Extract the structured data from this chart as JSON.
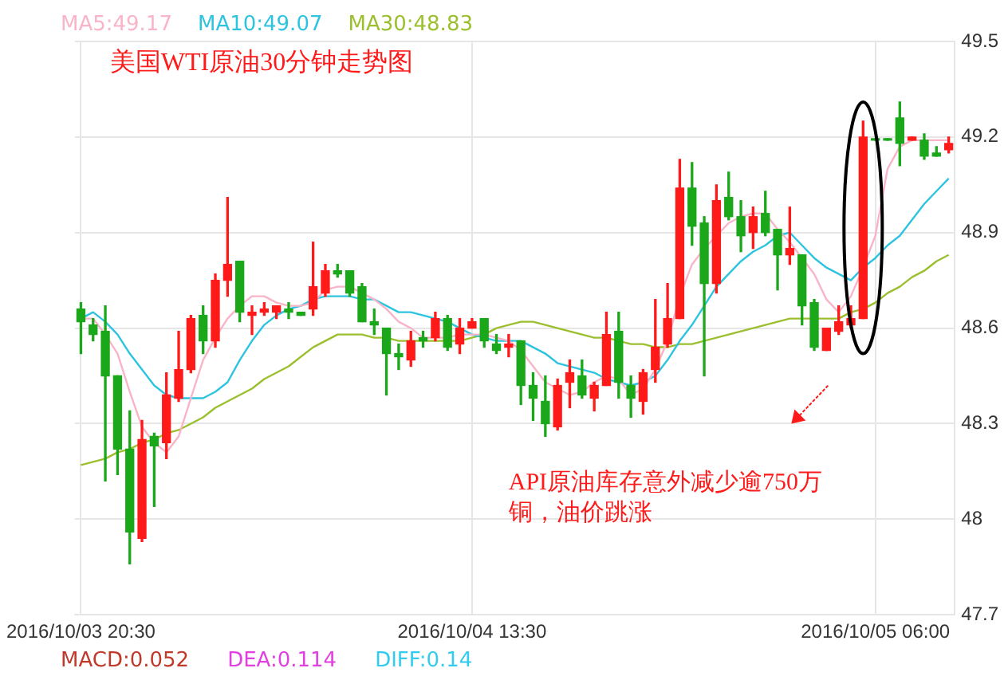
{
  "chart_data": {
    "type": "candlestick",
    "title": "美国WTI原油30分钟走势图",
    "categories": [
      "2016/10/03 20:30",
      null,
      null,
      null,
      null,
      null,
      null,
      null,
      null,
      null,
      null,
      null,
      null,
      null,
      null,
      null,
      null,
      null,
      null,
      null,
      null,
      null,
      null,
      null,
      null,
      null,
      null,
      null,
      null,
      null,
      null,
      null,
      "2016/10/04 13:30",
      null,
      null,
      null,
      null,
      null,
      null,
      null,
      null,
      null,
      null,
      null,
      null,
      null,
      null,
      null,
      null,
      null,
      null,
      null,
      null,
      null,
      null,
      null,
      null,
      null,
      null,
      null,
      null,
      null,
      null,
      null,
      null,
      "2016/10/05 06:00",
      null,
      null,
      null,
      null,
      null,
      null
    ],
    "ohlc": [
      [
        48.66,
        48.68,
        48.52,
        48.62
      ],
      [
        48.61,
        48.63,
        48.56,
        48.58
      ],
      [
        48.59,
        48.67,
        48.12,
        48.45
      ],
      [
        48.45,
        48.45,
        48.14,
        48.22
      ],
      [
        48.22,
        48.34,
        47.86,
        47.96
      ],
      [
        47.94,
        48.31,
        47.93,
        48.25
      ],
      [
        48.26,
        48.27,
        48.04,
        48.23
      ],
      [
        48.24,
        48.46,
        48.19,
        48.39
      ],
      [
        48.38,
        48.59,
        48.37,
        48.47
      ],
      [
        48.47,
        48.64,
        48.46,
        48.63
      ],
      [
        48.64,
        48.67,
        48.52,
        48.56
      ],
      [
        48.56,
        48.77,
        48.54,
        48.75
      ],
      [
        48.75,
        49.01,
        48.7,
        48.8
      ],
      [
        48.81,
        48.81,
        48.62,
        48.65
      ],
      [
        48.64,
        48.67,
        48.58,
        48.65
      ],
      [
        48.65,
        48.68,
        48.64,
        48.66
      ],
      [
        48.65,
        48.67,
        48.63,
        48.67
      ],
      [
        48.66,
        48.68,
        48.63,
        48.65
      ],
      [
        48.65,
        48.65,
        48.64,
        48.64
      ],
      [
        48.66,
        48.87,
        48.64,
        48.73
      ],
      [
        48.71,
        48.8,
        48.7,
        48.78
      ],
      [
        48.78,
        48.8,
        48.76,
        48.77
      ],
      [
        48.78,
        48.78,
        48.7,
        48.71
      ],
      [
        48.73,
        48.74,
        48.62,
        48.62
      ],
      [
        48.62,
        48.66,
        48.58,
        48.61
      ],
      [
        48.6,
        48.6,
        48.39,
        48.52
      ],
      [
        48.52,
        48.55,
        48.47,
        48.51
      ],
      [
        48.5,
        48.59,
        48.48,
        48.56
      ],
      [
        48.57,
        48.59,
        48.54,
        48.56
      ],
      [
        48.57,
        48.65,
        48.56,
        48.63
      ],
      [
        48.63,
        48.64,
        48.53,
        48.54
      ],
      [
        48.55,
        48.63,
        48.52,
        48.6
      ],
      [
        48.6,
        48.63,
        48.6,
        48.62
      ],
      [
        48.63,
        48.63,
        48.54,
        48.56
      ],
      [
        48.55,
        48.58,
        48.52,
        48.53
      ],
      [
        48.54,
        48.58,
        48.51,
        48.55
      ],
      [
        48.56,
        48.56,
        48.36,
        48.42
      ],
      [
        48.42,
        48.46,
        48.31,
        48.38
      ],
      [
        48.37,
        48.45,
        48.26,
        48.3
      ],
      [
        48.29,
        48.44,
        48.28,
        48.42
      ],
      [
        48.43,
        48.5,
        48.35,
        48.46
      ],
      [
        48.45,
        48.5,
        48.38,
        48.39
      ],
      [
        48.38,
        48.43,
        48.34,
        48.42
      ],
      [
        48.42,
        48.65,
        48.42,
        48.58
      ],
      [
        48.59,
        48.65,
        48.38,
        48.43
      ],
      [
        48.42,
        48.45,
        48.32,
        48.38
      ],
      [
        48.37,
        48.47,
        48.33,
        48.46
      ],
      [
        48.47,
        48.69,
        48.43,
        48.54
      ],
      [
        48.55,
        48.74,
        48.54,
        48.63
      ],
      [
        48.63,
        49.13,
        48.63,
        49.04
      ],
      [
        49.04,
        49.12,
        48.86,
        48.92
      ],
      [
        48.93,
        48.95,
        48.45,
        48.74
      ],
      [
        48.74,
        49.05,
        48.71,
        49.0
      ],
      [
        49.01,
        49.09,
        48.94,
        48.95
      ],
      [
        48.95,
        49.0,
        48.84,
        48.89
      ],
      [
        48.9,
        48.98,
        48.85,
        48.95
      ],
      [
        48.96,
        49.03,
        48.89,
        48.9
      ],
      [
        48.91,
        48.91,
        48.72,
        48.83
      ],
      [
        48.83,
        48.98,
        48.8,
        48.85
      ],
      [
        48.83,
        48.83,
        48.61,
        48.67
      ],
      [
        48.68,
        48.69,
        48.53,
        48.54
      ],
      [
        48.53,
        48.6,
        48.53,
        48.6
      ],
      [
        48.59,
        48.67,
        48.58,
        48.62
      ],
      [
        48.61,
        48.67,
        48.6,
        48.63
      ],
      [
        48.63,
        49.25,
        48.63,
        49.2
      ],
      [
        49.19,
        49.19,
        49.19,
        49.19
      ],
      [
        49.19,
        49.19,
        49.19,
        49.19
      ],
      [
        49.26,
        49.31,
        49.11,
        49.18
      ],
      [
        49.19,
        49.2,
        49.19,
        49.2
      ],
      [
        49.19,
        49.21,
        49.13,
        49.14
      ],
      [
        49.15,
        49.17,
        49.14,
        49.14
      ],
      [
        49.16,
        49.2,
        49.15,
        49.18
      ]
    ],
    "series": [
      {
        "name": "MA5:49.17",
        "type": "line",
        "color": "#f9b4c8",
        "values": [
          48.63,
          48.63,
          48.58,
          48.52,
          48.4,
          48.29,
          48.24,
          48.21,
          48.26,
          48.38,
          48.5,
          48.57,
          48.63,
          48.67,
          48.7,
          48.7,
          48.68,
          48.67,
          48.67,
          48.68,
          48.72,
          48.73,
          48.73,
          48.71,
          48.69,
          48.66,
          48.62,
          48.6,
          48.57,
          48.57,
          48.57,
          48.58,
          48.58,
          48.58,
          48.57,
          48.56,
          48.53,
          48.48,
          48.43,
          48.41,
          48.39,
          48.4,
          48.43,
          48.45,
          48.44,
          48.39,
          48.41,
          48.47,
          48.56,
          48.7,
          48.8,
          48.85,
          48.89,
          48.93,
          48.95,
          48.96,
          48.96,
          48.91,
          48.87,
          48.82,
          48.77,
          48.69,
          48.65,
          48.7,
          48.79,
          48.89,
          49.1,
          49.17,
          49.19,
          49.19,
          49.19,
          49.19
        ]
      },
      {
        "name": "MA10:49.07",
        "type": "line",
        "color": "#2ec4e0",
        "values": [
          48.63,
          48.65,
          48.62,
          48.58,
          48.52,
          48.47,
          48.42,
          48.39,
          48.38,
          48.38,
          48.38,
          48.4,
          48.43,
          48.5,
          48.56,
          48.61,
          48.64,
          48.66,
          48.67,
          48.69,
          48.7,
          48.7,
          48.7,
          48.69,
          48.69,
          48.67,
          48.65,
          48.65,
          48.64,
          48.63,
          48.62,
          48.6,
          48.58,
          48.57,
          48.56,
          48.56,
          48.56,
          48.54,
          48.52,
          48.49,
          48.48,
          48.47,
          48.46,
          48.44,
          48.43,
          48.42,
          48.43,
          48.45,
          48.5,
          48.56,
          48.61,
          48.67,
          48.73,
          48.77,
          48.81,
          48.84,
          48.86,
          48.89,
          48.9,
          48.86,
          48.82,
          48.79,
          48.77,
          48.75,
          48.79,
          48.82,
          48.86,
          48.89,
          48.94,
          48.99,
          49.03,
          49.07
        ]
      },
      {
        "name": "MA30:48.83",
        "type": "line",
        "color": "#9bbf2e",
        "values": [
          48.17,
          48.18,
          48.19,
          48.21,
          48.22,
          48.24,
          48.25,
          48.27,
          48.28,
          48.3,
          48.32,
          48.35,
          48.37,
          48.39,
          48.41,
          48.44,
          48.46,
          48.48,
          48.51,
          48.54,
          48.56,
          48.58,
          48.58,
          48.58,
          48.57,
          48.57,
          48.56,
          48.56,
          48.56,
          48.56,
          48.56,
          48.56,
          48.57,
          48.58,
          48.6,
          48.61,
          48.62,
          48.62,
          48.61,
          48.6,
          48.59,
          48.58,
          48.57,
          48.57,
          48.56,
          48.55,
          48.55,
          48.54,
          48.54,
          48.55,
          48.55,
          48.56,
          48.57,
          48.58,
          48.59,
          48.6,
          48.61,
          48.62,
          48.63,
          48.63,
          48.63,
          48.63,
          48.63,
          48.65,
          48.66,
          48.68,
          48.71,
          48.73,
          48.76,
          48.78,
          48.81,
          48.83
        ]
      }
    ],
    "ylim": [
      47.7,
      49.5
    ],
    "yticks": [
      47.7,
      48,
      48.3,
      48.6,
      48.9,
      49.2,
      49.5
    ],
    "grid": true,
    "legend": "top left",
    "marker": "none",
    "annotations": [
      "API原油库存意外减少逾750万铜，油价跳涨",
      "MACD:0.052",
      "DEA:0.114",
      "DIFF:0.14"
    ]
  }
}
